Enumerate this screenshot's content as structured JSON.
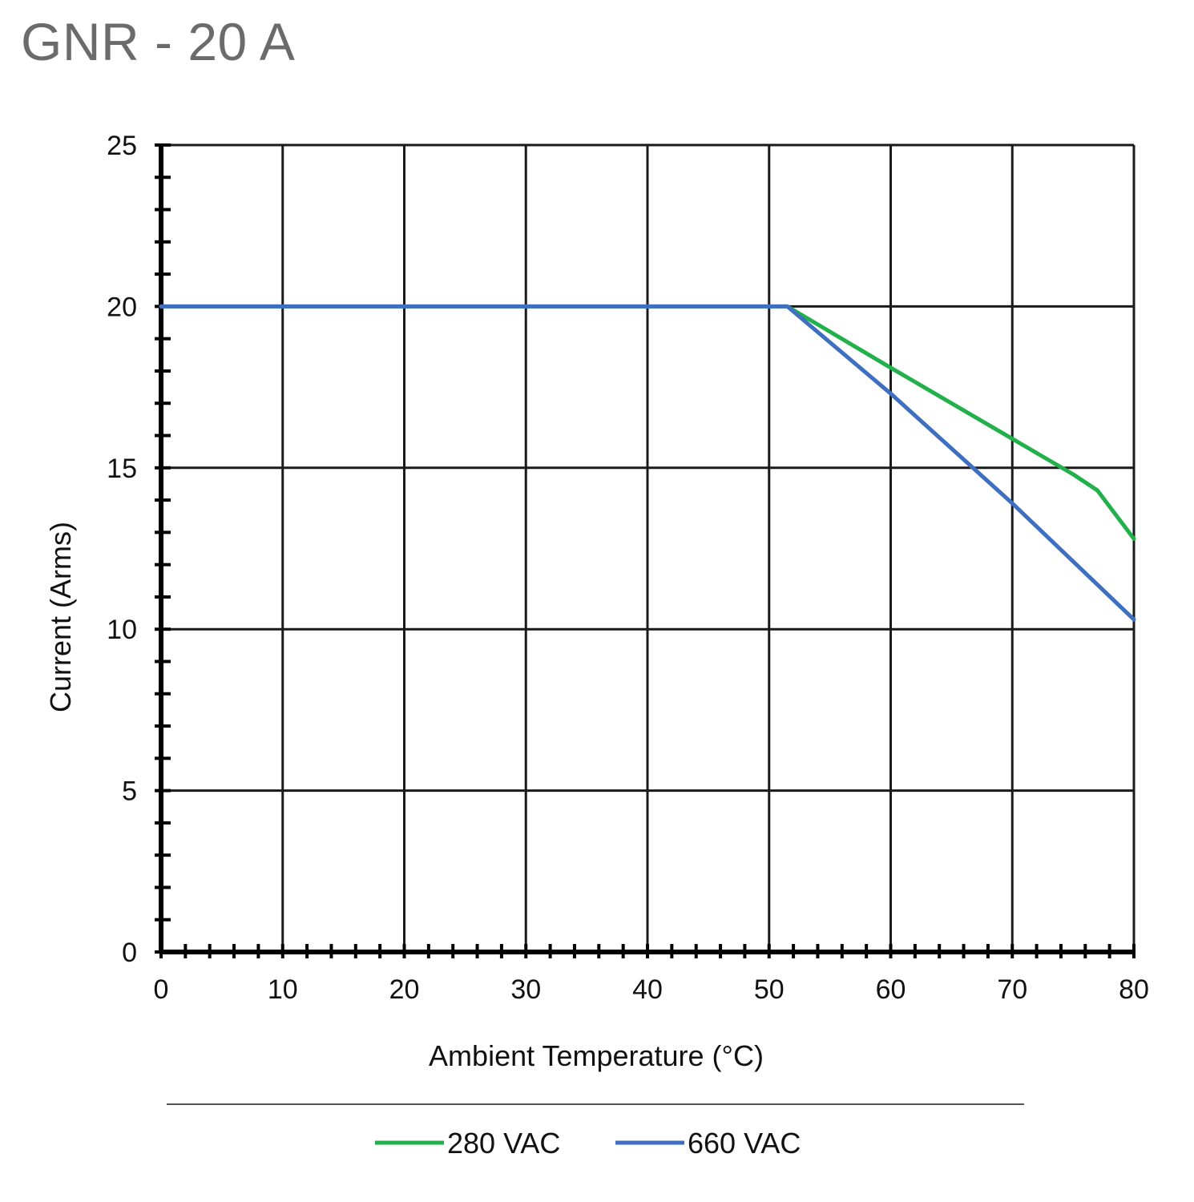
{
  "page": {
    "title": "GNR - 20 A"
  },
  "chart_data": {
    "type": "line",
    "title": "GNR - 20 A",
    "xlabel": "Ambient Temperature (°C)",
    "ylabel": "Current (Arms)",
    "xlim": [
      0,
      80
    ],
    "ylim": [
      0,
      25
    ],
    "x_ticks": [
      0,
      10,
      20,
      30,
      40,
      50,
      60,
      70,
      80
    ],
    "y_ticks": [
      0,
      5,
      10,
      15,
      20,
      25
    ],
    "x_ticks_labels": [
      "0",
      "10",
      "20",
      "30",
      "40",
      "50",
      "60",
      "70",
      "80"
    ],
    "y_ticks_labels": [
      "0",
      "5",
      "10",
      "15",
      "20",
      "25"
    ],
    "grid": true,
    "legend_position": "bottom",
    "series": [
      {
        "name": "280 VAC",
        "color": "#22b04b",
        "x": [
          0,
          51.5,
          60,
          70,
          75,
          77,
          80
        ],
        "y": [
          20,
          20,
          18.1,
          15.9,
          14.8,
          14.3,
          12.8
        ]
      },
      {
        "name": "660 VAC",
        "color": "#3e6fc1",
        "x": [
          0,
          51.5,
          60,
          70,
          80
        ],
        "y": [
          20,
          20,
          17.3,
          13.9,
          10.3
        ]
      }
    ]
  }
}
